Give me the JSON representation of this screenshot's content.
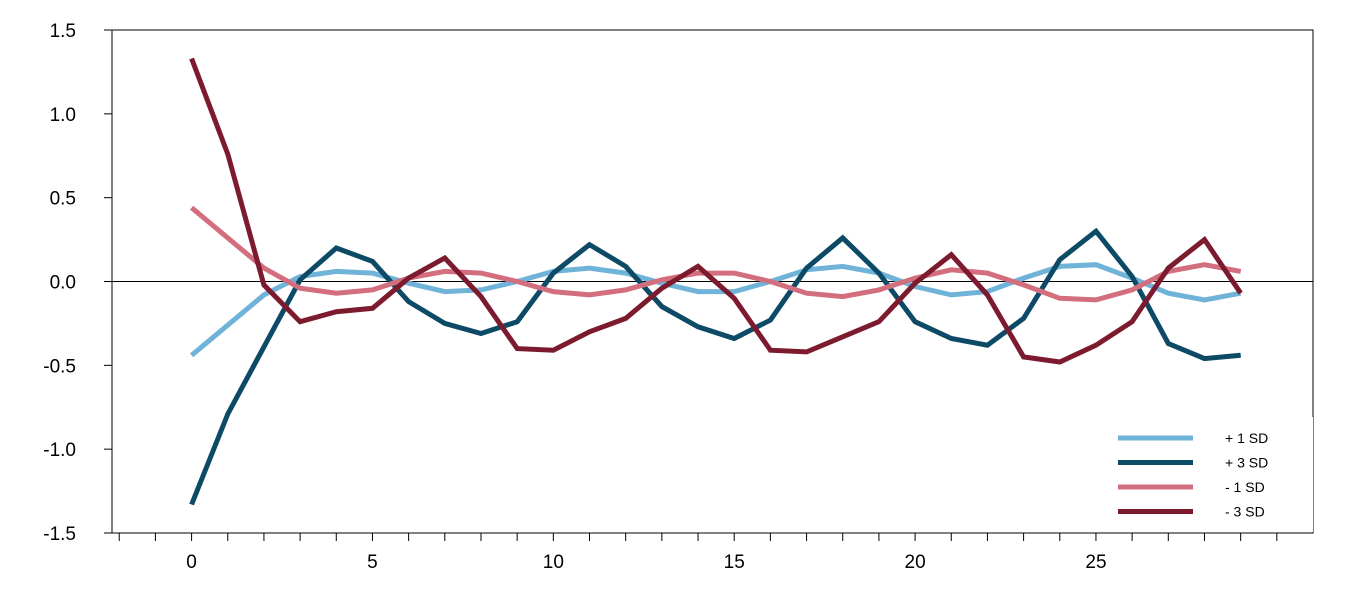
{
  "chart_data": {
    "type": "line",
    "title": "",
    "xlabel": "",
    "ylabel": "",
    "xlim": [
      -2.2,
      31
    ],
    "ylim": [
      -1.5,
      1.5
    ],
    "x_ticks": [
      0,
      5,
      10,
      15,
      20,
      25
    ],
    "x_tick_labels": [
      "0",
      "5",
      "10",
      "15",
      "20",
      "25"
    ],
    "y_ticks": [
      1.5,
      1.0,
      0.5,
      0.0,
      -0.5,
      -1.0,
      -1.5
    ],
    "y_tick_labels": [
      "1.5",
      "1.0",
      "0.5",
      "0.0",
      "-0.5",
      "-1.0",
      "-1.5"
    ],
    "grid": false,
    "legend_position": "bottom-right",
    "x": [
      0,
      1,
      2,
      3,
      4,
      5,
      6,
      7,
      8,
      9,
      10,
      11,
      12,
      13,
      14,
      15,
      16,
      17,
      18,
      19,
      20,
      21,
      22,
      23,
      24,
      25,
      26,
      27,
      28,
      29
    ],
    "series": [
      {
        "name": "+ 1 SD",
        "color": "#6fb3d8",
        "values": [
          -0.44,
          -0.26,
          -0.08,
          0.03,
          0.06,
          0.05,
          -0.01,
          -0.06,
          -0.05,
          0.0,
          0.06,
          0.08,
          0.05,
          -0.01,
          -0.06,
          -0.06,
          0.0,
          0.07,
          0.09,
          0.05,
          -0.03,
          -0.08,
          -0.06,
          0.02,
          0.09,
          0.1,
          0.02,
          -0.07,
          -0.11,
          -0.07
        ]
      },
      {
        "name": "+ 3 SD",
        "color": "#0d4a66",
        "values": [
          -1.33,
          -0.79,
          -0.39,
          0.01,
          0.2,
          0.12,
          -0.12,
          -0.25,
          -0.31,
          -0.24,
          0.05,
          0.22,
          0.09,
          -0.15,
          -0.27,
          -0.34,
          -0.23,
          0.08,
          0.26,
          0.05,
          -0.24,
          -0.34,
          -0.38,
          -0.22,
          0.13,
          0.3,
          0.03,
          -0.37,
          -0.46,
          -0.44
        ]
      },
      {
        "name": "- 1 SD",
        "color": "#d36e7e",
        "values": [
          0.44,
          0.26,
          0.08,
          -0.04,
          -0.07,
          -0.05,
          0.02,
          0.06,
          0.05,
          0.0,
          -0.06,
          -0.08,
          -0.05,
          0.01,
          0.05,
          0.05,
          0.0,
          -0.07,
          -0.09,
          -0.05,
          0.02,
          0.07,
          0.05,
          -0.02,
          -0.1,
          -0.11,
          -0.05,
          0.06,
          0.1,
          0.06
        ]
      },
      {
        "name": "- 3 SD",
        "color": "#7d1b2e",
        "values": [
          1.33,
          0.76,
          -0.02,
          -0.24,
          -0.18,
          -0.16,
          0.02,
          0.14,
          -0.09,
          -0.4,
          -0.41,
          -0.3,
          -0.22,
          -0.04,
          0.09,
          -0.1,
          -0.41,
          -0.42,
          -0.33,
          -0.24,
          -0.01,
          0.16,
          -0.08,
          -0.45,
          -0.48,
          -0.38,
          -0.24,
          0.08,
          0.25,
          -0.07
        ]
      }
    ]
  }
}
